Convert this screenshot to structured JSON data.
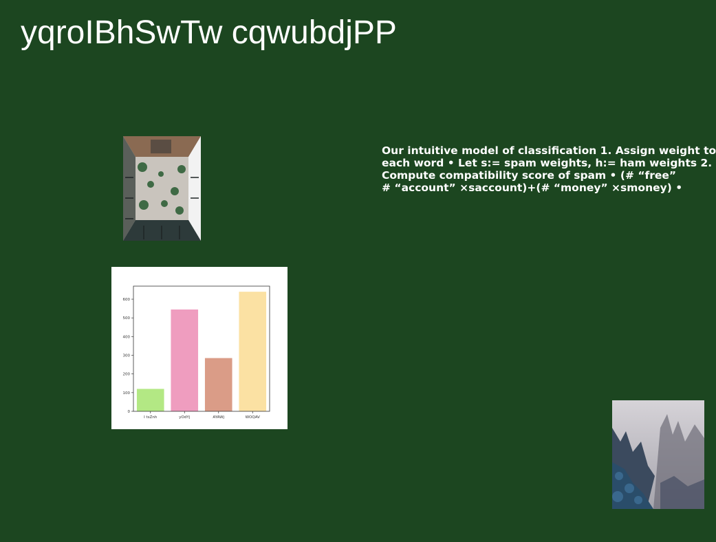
{
  "slide": {
    "title": "yqroIBhSwTw cqwubdjPP",
    "body_lines": [
      "Our intuitive model of classification 1. Assign weight to",
      "each word • Let s:= spam weights, h:= ham weights 2.",
      "Compute compatibility score of spam • (# “free”",
      "# “account” ×saccount)+(# “money” ×smoney) •"
    ],
    "colors": {
      "background": "#1c4620",
      "text": "#ffffff"
    }
  },
  "images": {
    "courtyard_icon": "courtyard-photo",
    "forest_icon": "misty-forest-photo"
  },
  "chart_data": {
    "type": "bar",
    "categories": [
      "I tsZnh",
      "yOdYj",
      "AYAWj",
      "WOQAV"
    ],
    "values": [
      120,
      545,
      285,
      640
    ],
    "colors": [
      "#b3e884",
      "#ef9dbf",
      "#da9c87",
      "#fbe1a3"
    ],
    "ylim": [
      0,
      670
    ],
    "yticks": [
      0,
      100,
      200,
      300,
      400,
      500,
      600
    ],
    "title": "",
    "xlabel": "",
    "ylabel": "",
    "grid": false
  }
}
